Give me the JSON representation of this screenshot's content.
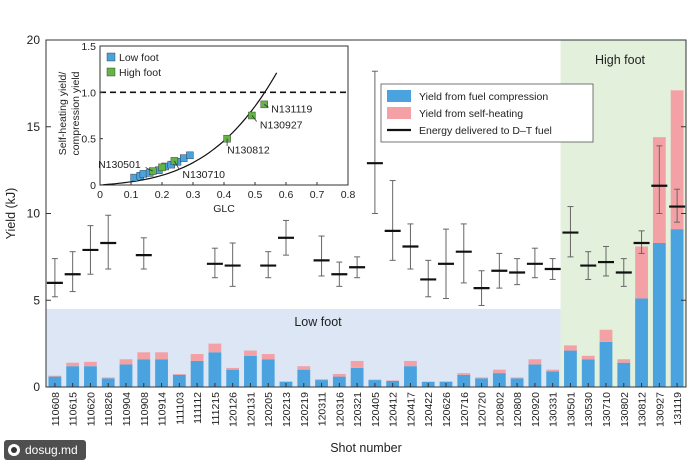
{
  "chart_data": [
    {
      "type": "bar",
      "xlabel": "Shot number",
      "ylabel": "Yield (kJ)",
      "ylim": [
        0,
        20
      ],
      "yticks": [
        0,
        5,
        10,
        15,
        20
      ],
      "grid": false,
      "categories": [
        "110608",
        "110615",
        "110620",
        "110826",
        "110904",
        "110908",
        "110914",
        "111103",
        "111112",
        "111215",
        "120126",
        "120131",
        "120205",
        "120213",
        "120219",
        "120311",
        "120316",
        "120321",
        "120405",
        "120412",
        "120417",
        "120422",
        "120626",
        "120716",
        "120720",
        "120802",
        "120808",
        "120920",
        "130331",
        "130501",
        "130530",
        "130710",
        "130802",
        "130812",
        "130927",
        "131119"
      ],
      "series": [
        {
          "name": "Yield from fuel compression",
          "color": "#4aa3df",
          "values": [
            0.6,
            1.2,
            1.2,
            0.5,
            1.3,
            1.6,
            1.6,
            0.7,
            1.5,
            2.0,
            1.0,
            1.8,
            1.6,
            0.3,
            1.0,
            0.4,
            0.6,
            1.1,
            0.4,
            0.35,
            1.2,
            0.3,
            0.3,
            0.7,
            0.5,
            0.8,
            0.5,
            1.3,
            0.9,
            2.1,
            1.6,
            2.6,
            1.4,
            5.1,
            8.3,
            9.1
          ]
        },
        {
          "name": "Yield from self-heating",
          "color": "#f4a1a6",
          "values": [
            0.05,
            0.2,
            0.25,
            0.05,
            0.3,
            0.4,
            0.4,
            0.05,
            0.4,
            0.5,
            0.1,
            0.3,
            0.3,
            0.03,
            0.2,
            0.05,
            0.15,
            0.4,
            0.03,
            0.03,
            0.3,
            0.02,
            0.03,
            0.1,
            0.05,
            0.2,
            0.05,
            0.3,
            0.1,
            0.3,
            0.2,
            0.7,
            0.2,
            3.0,
            6.1,
            8.0
          ]
        },
        {
          "name": "Energy delivered to D–T fuel",
          "color": "#111111",
          "values": [
            6.0,
            6.5,
            7.9,
            8.3,
            null,
            7.6,
            null,
            null,
            null,
            7.1,
            7.0,
            null,
            7.0,
            8.6,
            null,
            7.3,
            6.5,
            6.9,
            12.9,
            9.0,
            8.1,
            6.2,
            7.1,
            7.8,
            5.7,
            6.7,
            6.6,
            7.1,
            6.8,
            8.9,
            7.0,
            7.2,
            6.6,
            8.3,
            11.6,
            10.4
          ],
          "err_low": [
            5.2,
            5.5,
            6.5,
            6.8,
            null,
            6.8,
            null,
            null,
            null,
            6.3,
            5.8,
            null,
            6.3,
            7.6,
            null,
            6.4,
            5.8,
            6.3,
            10.0,
            7.3,
            6.8,
            5.2,
            5.1,
            6.0,
            4.7,
            5.7,
            5.9,
            6.3,
            6.2,
            7.5,
            6.2,
            6.4,
            5.8,
            7.7,
            10.0,
            9.5
          ],
          "err_high": [
            7.4,
            7.8,
            9.3,
            9.9,
            null,
            8.6,
            null,
            null,
            null,
            8.0,
            8.3,
            null,
            7.8,
            9.6,
            null,
            8.7,
            7.2,
            7.5,
            18.2,
            11.9,
            9.4,
            7.3,
            9.1,
            9.4,
            6.7,
            7.7,
            7.4,
            8.0,
            7.4,
            10.4,
            7.8,
            8.1,
            7.4,
            9.0,
            13.9,
            11.4
          ]
        }
      ],
      "legend": "upper right",
      "regions": [
        {
          "label": "Low foot",
          "y_top": 4.5,
          "color": "#dce6f5"
        },
        {
          "label": "High foot",
          "from_category": "130501",
          "color": "#e3f1dc"
        }
      ]
    },
    {
      "type": "scatter",
      "xlabel": "GLC",
      "ylabel": "Self-heating yield/\ncompression yield",
      "xlim": [
        0,
        0.8
      ],
      "ylim": [
        0,
        1.5
      ],
      "xticks": [
        "0",
        "0.1",
        "0.2",
        "0.3",
        "0.4",
        "0.5",
        "0.6",
        "0.7",
        "0.8"
      ],
      "yticks": [
        "0",
        "0.5",
        "1.0",
        "1.5"
      ],
      "reference_line": {
        "y": 1.0,
        "style": "dashed"
      },
      "series": [
        {
          "name": "Low foot",
          "color": "#4aa3df",
          "x": [
            0.11,
            0.13,
            0.14,
            0.16,
            0.19,
            0.21,
            0.23,
            0.25,
            0.27,
            0.29
          ],
          "y": [
            0.08,
            0.1,
            0.12,
            0.13,
            0.16,
            0.2,
            0.22,
            0.25,
            0.29,
            0.32
          ]
        },
        {
          "name": "High foot",
          "color": "#63b346",
          "x": [
            0.17,
            0.2,
            0.24,
            0.41,
            0.49,
            0.53
          ],
          "y": [
            0.15,
            0.19,
            0.26,
            0.5,
            0.75,
            0.87
          ]
        }
      ],
      "annotations": [
        {
          "text": "N131119",
          "x": 0.53,
          "y": 0.87
        },
        {
          "text": "N130927",
          "x": 0.49,
          "y": 0.75
        },
        {
          "text": "N130812",
          "x": 0.41,
          "y": 0.5
        },
        {
          "text": "N130501",
          "x": 0.17,
          "y": 0.15
        },
        {
          "text": "N130710",
          "x": 0.24,
          "y": 0.26
        }
      ],
      "legend": "upper left"
    }
  ],
  "watermark": "dosug.md"
}
